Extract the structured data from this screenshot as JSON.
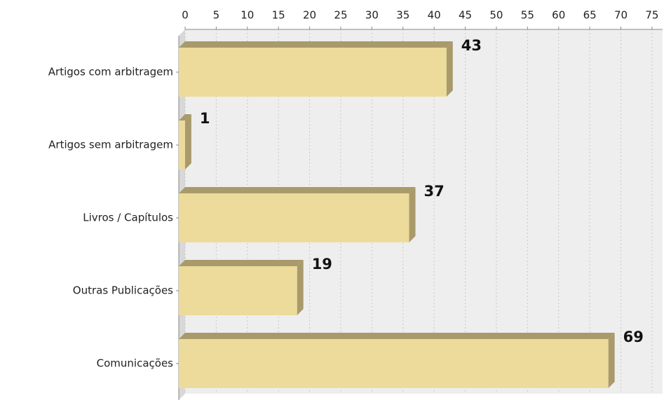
{
  "chart_data": {
    "type": "bar",
    "orientation": "horizontal",
    "categories": [
      "Artigos com arbitragem",
      "Artigos sem arbitragem",
      "Livros / Capítulos",
      "Outras Publicações",
      "Comunicações"
    ],
    "values": [
      43,
      1,
      37,
      19,
      69
    ],
    "color": "#ecdb9a",
    "xlim": [
      0,
      76.7
    ],
    "xticks": [
      0,
      5,
      10,
      15,
      20,
      25,
      30,
      35,
      40,
      45,
      50,
      55,
      60,
      65,
      70,
      75
    ],
    "grid": true
  }
}
